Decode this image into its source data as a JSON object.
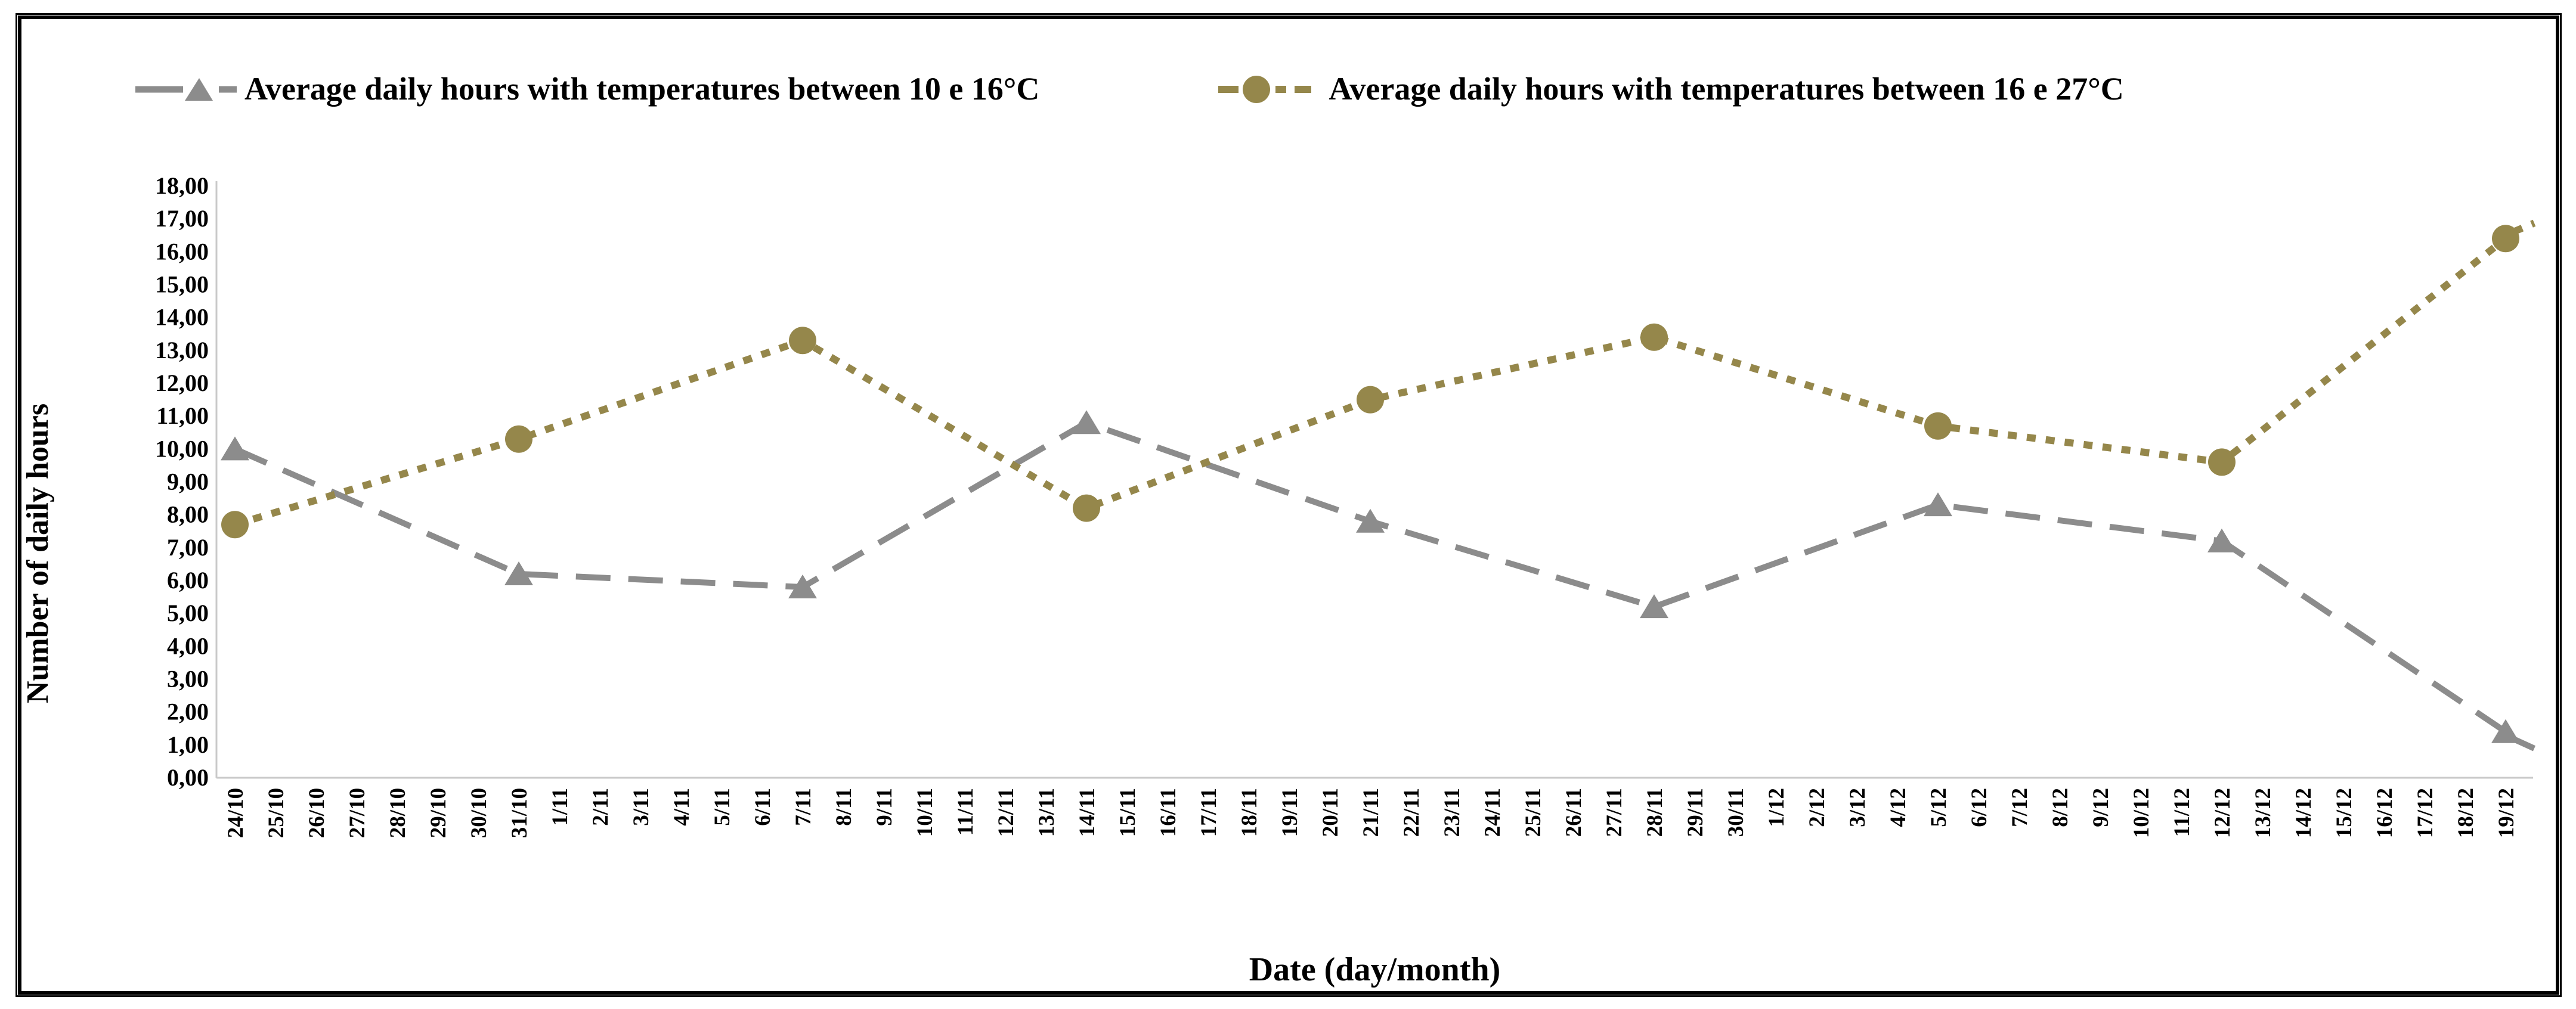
{
  "legend": {
    "series1_label": "Average daily hours with temperatures between 10 e 16°C",
    "series2_label": "Average daily hours with temperatures between 16 e 27°C"
  },
  "y_axis": {
    "title": "Number of daily hours",
    "tick_labels": [
      "0,00",
      "1,00",
      "2,00",
      "3,00",
      "4,00",
      "5,00",
      "6,00",
      "7,00",
      "8,00",
      "9,00",
      "10,00",
      "11,00",
      "12,00",
      "13,00",
      "14,00",
      "15,00",
      "16,00",
      "17,00",
      "18,00"
    ]
  },
  "x_axis": {
    "title": "Date (day/month)",
    "tick_labels": [
      "24/10",
      "25/10",
      "26/10",
      "27/10",
      "28/10",
      "29/10",
      "30/10",
      "31/10",
      "1/11",
      "2/11",
      "3/11",
      "4/11",
      "5/11",
      "6/11",
      "7/11",
      "8/11",
      "9/11",
      "10/11",
      "11/11",
      "12/11",
      "13/11",
      "14/11",
      "15/11",
      "16/11",
      "17/11",
      "18/11",
      "19/11",
      "20/11",
      "21/11",
      "22/11",
      "23/11",
      "24/11",
      "25/11",
      "26/11",
      "27/11",
      "28/11",
      "29/11",
      "30/11",
      "1/12",
      "2/12",
      "3/12",
      "4/12",
      "5/12",
      "6/12",
      "7/12",
      "8/12",
      "9/12",
      "10/12",
      "11/12",
      "12/12",
      "13/12",
      "14/12",
      "15/12",
      "16/12",
      "17/12",
      "18/12",
      "19/12"
    ]
  },
  "chart_data": {
    "type": "line",
    "title": "",
    "xlabel": "Date (day/month)",
    "ylabel": "Number of daily hours",
    "ylim": [
      0,
      18
    ],
    "y_tick_step": 1,
    "grid": false,
    "legend_position": "top",
    "x_categories_all_days": "daily ticks from 24/10 to 19/12, data points weekly (every 7th tick)",
    "x": [
      "24/10",
      "31/10",
      "7/11",
      "14/11",
      "21/11",
      "28/11",
      "5/12",
      "12/12",
      "19/12"
    ],
    "point_tick_indices": [
      0,
      7,
      14,
      21,
      28,
      35,
      42,
      49,
      56
    ],
    "series": [
      {
        "name": "Average daily hours with temperatures between 10 e 16°C",
        "color": "#8C8C8C",
        "marker": "triangle",
        "line_style": "long-dash",
        "values": [
          10.0,
          6.2,
          5.8,
          10.8,
          7.8,
          5.2,
          8.3,
          7.2,
          1.4
        ]
      },
      {
        "name": "Average daily hours with temperatures between 16 e 27°C",
        "color": "#95874B",
        "marker": "circle",
        "line_style": "dotted",
        "values": [
          7.7,
          10.3,
          13.3,
          8.2,
          11.5,
          13.4,
          10.7,
          9.6,
          16.4
        ]
      }
    ]
  },
  "colors": {
    "series1": "#8C8C8C",
    "series2": "#95874B",
    "axis_line": "#C9C9C9",
    "text": "#000000",
    "border": "#000000",
    "background": "#FFFFFF"
  }
}
